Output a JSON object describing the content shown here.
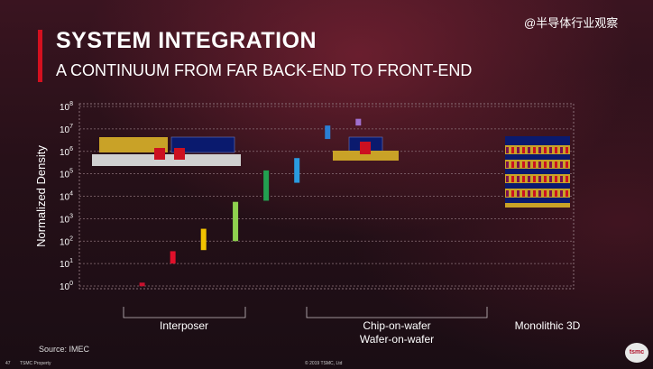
{
  "slide": {
    "title": "SYSTEM INTEGRATION",
    "subtitle": "A CONTINUUM FROM FAR BACK-END TO FRONT-END",
    "watermark": "@半导体行业观察",
    "source": "Source: IMEC",
    "footer_page": "47",
    "footer_left": "TSMC Property",
    "footer_center": "© 2019 TSMC, Ltd",
    "logo_text": "tsmc"
  },
  "chart_data": {
    "type": "range-bar",
    "ylabel": "Normalized Density",
    "yscale": "log",
    "ylim_exp": [
      0,
      8
    ],
    "ytick_exps": [
      0,
      1,
      2,
      3,
      4,
      5,
      6,
      7,
      8
    ],
    "grid": true,
    "bars": [
      {
        "x": 0.9,
        "low_exp": 0.0,
        "high_exp": 0.15,
        "color": "#c8102e"
      },
      {
        "x": 2.2,
        "low_exp": 1.0,
        "high_exp": 1.55,
        "color": "#e0102a"
      },
      {
        "x": 3.5,
        "low_exp": 1.6,
        "high_exp": 2.55,
        "color": "#f2c200"
      },
      {
        "x": 4.85,
        "low_exp": 2.0,
        "high_exp": 3.75,
        "color": "#8fd14f"
      },
      {
        "x": 6.15,
        "low_exp": 3.8,
        "high_exp": 5.15,
        "color": "#22a050"
      },
      {
        "x": 7.45,
        "low_exp": 4.6,
        "high_exp": 5.7,
        "color": "#2a9be0"
      },
      {
        "x": 8.75,
        "low_exp": 6.55,
        "high_exp": 7.15,
        "color": "#2a7fd4"
      },
      {
        "x": 10.05,
        "low_exp": 7.15,
        "high_exp": 7.45,
        "color": "#a070d0"
      }
    ],
    "groups": [
      {
        "label": "Interposer"
      },
      {
        "label": "Chip-on-wafer\nWafer-on-wafer"
      },
      {
        "label": "Monolithic 3D"
      }
    ],
    "colors": {
      "grid": "#8a7078",
      "axis_text": "#ffffff",
      "gold": "#c9a227",
      "navy": "#0a1a6e",
      "chip": "#cc1020",
      "substrate": "#d0d0d0"
    }
  }
}
